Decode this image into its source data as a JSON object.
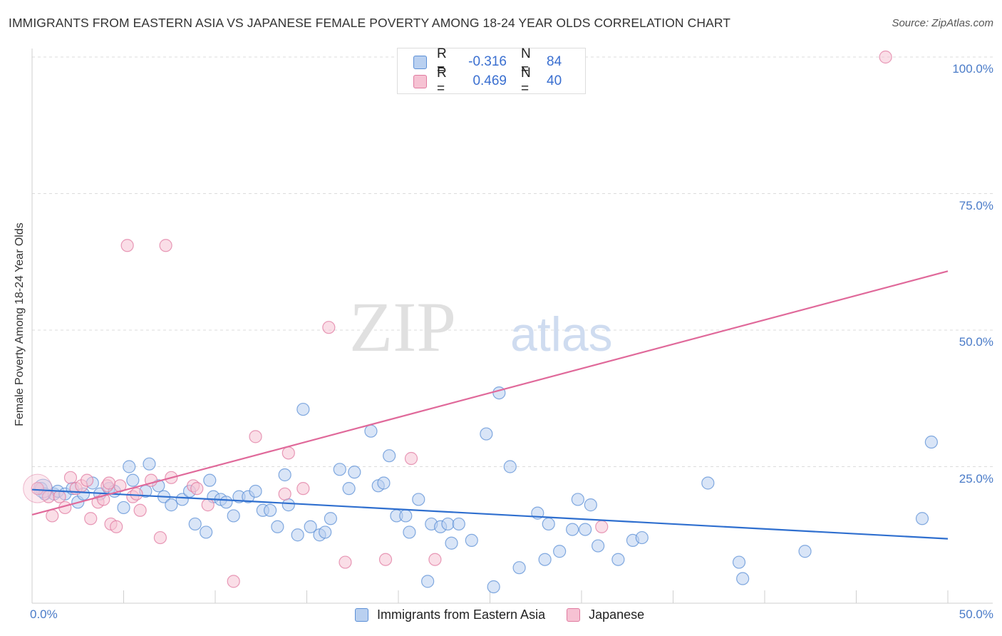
{
  "title": "IMMIGRANTS FROM EASTERN ASIA VS JAPANESE FEMALE POVERTY AMONG 18-24 YEAR OLDS CORRELATION CHART",
  "source": "Source: ZipAtlas.com",
  "colors": {
    "blue": "#5b8fd6",
    "blue_fill": "#b9d0f0",
    "pink": "#e07aa0",
    "pink_fill": "#f6c2d3",
    "blue_line": "#2f6fcf",
    "pink_line": "#e0699a"
  },
  "watermark": {
    "zip": "ZIP",
    "atlas": "atlas"
  },
  "legend": {
    "rows": [
      {
        "r_label": "R =",
        "r_value": "-0.316",
        "n_label": "N =",
        "n_value": "84"
      },
      {
        "r_label": "R =",
        "r_value": "0.469",
        "n_label": "N =",
        "n_value": "40"
      }
    ]
  },
  "bottom_legend": [
    "Immigrants from Eastern Asia",
    "Japanese"
  ],
  "chart_data": {
    "type": "scatter",
    "ylabel": "Female Poverty Among 18-24 Year Olds",
    "xlim": [
      0,
      50
    ],
    "ylim": [
      0,
      100
    ],
    "x_tick_labels": [
      "0.0%",
      "50.0%"
    ],
    "y_tick_labels": [
      "100.0%",
      "75.0%",
      "50.0%",
      "25.0%"
    ],
    "y_tick_values": [
      100,
      75,
      50,
      25
    ],
    "series": [
      {
        "name": "Immigrants from Eastern Asia",
        "trend": {
          "x": [
            0,
            50
          ],
          "y": [
            20.8,
            11.8
          ]
        },
        "points": [
          [
            0.5,
            21
          ],
          [
            0.7,
            20
          ],
          [
            1.2,
            20
          ],
          [
            1.4,
            20.5
          ],
          [
            1.8,
            20
          ],
          [
            2.2,
            21
          ],
          [
            2.5,
            18.5
          ],
          [
            2.8,
            20
          ],
          [
            3.3,
            22
          ],
          [
            3.7,
            20
          ],
          [
            4.2,
            21
          ],
          [
            4.5,
            20.5
          ],
          [
            5,
            17.5
          ],
          [
            5.3,
            25
          ],
          [
            5.5,
            22.5
          ],
          [
            6.2,
            20.5
          ],
          [
            6.4,
            25.5
          ],
          [
            6.9,
            21.5
          ],
          [
            7.2,
            19.5
          ],
          [
            7.6,
            18
          ],
          [
            8.2,
            19
          ],
          [
            8.6,
            20.5
          ],
          [
            8.9,
            14.5
          ],
          [
            9.5,
            13
          ],
          [
            9.7,
            22.5
          ],
          [
            9.9,
            19.5
          ],
          [
            10.3,
            19
          ],
          [
            10.6,
            18.5
          ],
          [
            11,
            16
          ],
          [
            11.3,
            19.5
          ],
          [
            11.8,
            19.5
          ],
          [
            12.2,
            20.5
          ],
          [
            12.6,
            17
          ],
          [
            13,
            17
          ],
          [
            13.4,
            14
          ],
          [
            13.8,
            23.5
          ],
          [
            14,
            18
          ],
          [
            14.5,
            12.5
          ],
          [
            14.8,
            35.5
          ],
          [
            15.2,
            14
          ],
          [
            15.7,
            12.5
          ],
          [
            16,
            13
          ],
          [
            16.3,
            15.5
          ],
          [
            16.8,
            24.5
          ],
          [
            17.3,
            21
          ],
          [
            17.6,
            24
          ],
          [
            18.5,
            31.5
          ],
          [
            18.9,
            21.5
          ],
          [
            19.2,
            22
          ],
          [
            19.5,
            27
          ],
          [
            19.9,
            16
          ],
          [
            20.4,
            16
          ],
          [
            20.6,
            13
          ],
          [
            21.1,
            19
          ],
          [
            21.6,
            4
          ],
          [
            21.8,
            14.5
          ],
          [
            22.3,
            14
          ],
          [
            22.7,
            14.5
          ],
          [
            22.9,
            11
          ],
          [
            23.3,
            14.5
          ],
          [
            24,
            11.5
          ],
          [
            24.8,
            31
          ],
          [
            25.2,
            3
          ],
          [
            25.5,
            38.5
          ],
          [
            26.1,
            25
          ],
          [
            26.6,
            6.5
          ],
          [
            27.6,
            16.5
          ],
          [
            28,
            8
          ],
          [
            28.2,
            14.5
          ],
          [
            28.8,
            9.5
          ],
          [
            29.5,
            13.5
          ],
          [
            29.8,
            19
          ],
          [
            30.2,
            13.5
          ],
          [
            30.5,
            18
          ],
          [
            30.9,
            10.5
          ],
          [
            32,
            8
          ],
          [
            32.8,
            11.5
          ],
          [
            33.3,
            12
          ],
          [
            36.9,
            22
          ],
          [
            38.6,
            7.5
          ],
          [
            38.8,
            4.5
          ],
          [
            42.2,
            9.5
          ],
          [
            48.6,
            15.5
          ],
          [
            49.1,
            29.5
          ]
        ]
      },
      {
        "name": "Japanese",
        "trend": {
          "x": [
            0,
            50
          ],
          "y": [
            16.2,
            60.8
          ]
        },
        "points": [
          [
            0.3,
            21
          ],
          [
            0.9,
            19.5
          ],
          [
            1.1,
            16
          ],
          [
            1.5,
            19.5
          ],
          [
            1.8,
            17.5
          ],
          [
            2.1,
            23
          ],
          [
            2.4,
            21
          ],
          [
            2.7,
            21.5
          ],
          [
            3,
            22.5
          ],
          [
            3.2,
            15.5
          ],
          [
            3.6,
            18.5
          ],
          [
            3.9,
            19
          ],
          [
            4.1,
            21.5
          ],
          [
            4.3,
            14.5
          ],
          [
            4.6,
            14
          ],
          [
            4.8,
            21.5
          ],
          [
            5.2,
            65.5
          ],
          [
            5.5,
            19.5
          ],
          [
            5.7,
            20
          ],
          [
            5.9,
            17
          ],
          [
            6.5,
            22.5
          ],
          [
            7,
            12
          ],
          [
            7.3,
            65.5
          ],
          [
            7.6,
            23
          ],
          [
            8.8,
            21.5
          ],
          [
            9,
            21
          ],
          [
            9.6,
            18
          ],
          [
            11,
            4
          ],
          [
            12.2,
            30.5
          ],
          [
            13.8,
            20
          ],
          [
            14,
            27.5
          ],
          [
            14.8,
            21
          ],
          [
            16.2,
            50.5
          ],
          [
            17.1,
            7.5
          ],
          [
            19.3,
            8
          ],
          [
            20.7,
            26.5
          ],
          [
            22,
            8
          ],
          [
            31.1,
            14
          ],
          [
            46.6,
            100
          ],
          [
            4.2,
            22
          ]
        ]
      }
    ]
  }
}
